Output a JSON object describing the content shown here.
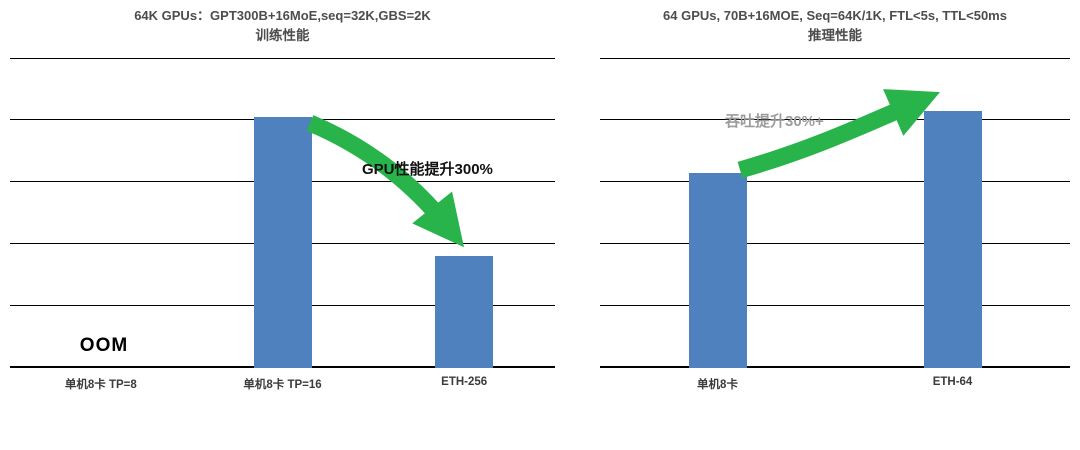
{
  "accent_colors": {
    "bar_blue": "#4E81BD",
    "arrow_green": "#29B34B"
  },
  "chart_data": [
    {
      "type": "bar",
      "title": "64K GPUs：GPT300B+16MoE,seq=32K,GBS=2K",
      "subtitle": "训练性能",
      "categories": [
        "单机8卡 TP=8",
        "单机8卡 TP=16",
        "ETH-256"
      ],
      "values": [
        null,
        4.05,
        1.8
      ],
      "ylim": [
        0,
        5
      ],
      "gridline_step": 1,
      "grid": "horizontal",
      "legend": "none",
      "bar_color": "#4E81BD",
      "oom_label": "OOM",
      "annotation": {
        "text": "GPU性能提升300%",
        "color": "#111111"
      },
      "arrow": {
        "direction": "down-right",
        "color": "#29B34B"
      }
    },
    {
      "type": "bar",
      "title": "64 GPUs, 70B+16MOE, Seq=64K/1K, FTL<5s, TTL<50ms",
      "subtitle": "推理性能",
      "categories": [
        "单机8卡",
        "ETH-64"
      ],
      "values": [
        3.15,
        4.15
      ],
      "ylim": [
        0,
        5
      ],
      "gridline_step": 1,
      "grid": "horizontal",
      "legend": "none",
      "bar_color": "#4E81BD",
      "oom_label": null,
      "annotation": {
        "text": "吞吐提升30%+",
        "color": "#9c9c9c"
      },
      "arrow": {
        "direction": "up-right",
        "color": "#29B34B"
      }
    }
  ]
}
